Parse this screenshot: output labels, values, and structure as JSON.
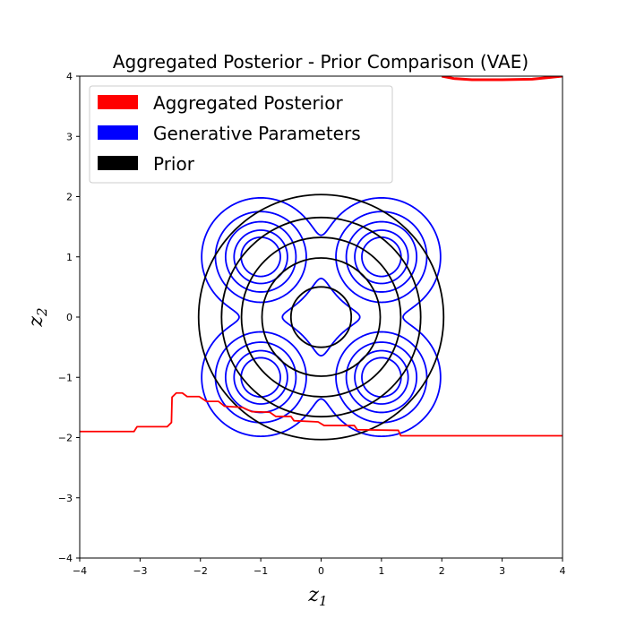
{
  "chart_data": {
    "type": "contour",
    "title": "Aggregated Posterior - Prior Comparison (VAE)",
    "xlabel": {
      "base": "z",
      "sub": "1"
    },
    "ylabel": {
      "base": "z",
      "sub": "2"
    },
    "xlim": [
      -4,
      4
    ],
    "ylim": [
      -4,
      4
    ],
    "xticks": [
      -4,
      -3,
      -2,
      -1,
      0,
      1,
      2,
      3,
      4
    ],
    "yticks": [
      -4,
      -3,
      -2,
      -1,
      0,
      1,
      2,
      3,
      4
    ],
    "xtick_labels": [
      "−4",
      "−3",
      "−2",
      "−1",
      "0",
      "1",
      "2",
      "3",
      "4"
    ],
    "ytick_labels": [
      "−4",
      "−3",
      "−2",
      "−1",
      "0",
      "1",
      "2",
      "3",
      "4"
    ],
    "grid": false,
    "legend_position": "top-left",
    "series": [
      {
        "name": "Aggregated Posterior",
        "color": "#ff0000",
        "paths": [
          [
            [
              -4,
              -1.9
            ],
            [
              -3.1,
              -1.9
            ],
            [
              -3.05,
              -1.82
            ],
            [
              -2.55,
              -1.82
            ],
            [
              -2.48,
              -1.75
            ],
            [
              -2.47,
              -1.33
            ],
            [
              -2.4,
              -1.26
            ],
            [
              -2.3,
              -1.26
            ],
            [
              -2.22,
              -1.32
            ],
            [
              -2.02,
              -1.32
            ],
            [
              -1.9,
              -1.4
            ],
            [
              -1.7,
              -1.4
            ],
            [
              -1.6,
              -1.48
            ],
            [
              -1.3,
              -1.5
            ],
            [
              -1.15,
              -1.57
            ],
            [
              -0.85,
              -1.58
            ],
            [
              -0.75,
              -1.65
            ],
            [
              -0.5,
              -1.65
            ],
            [
              -0.45,
              -1.72
            ],
            [
              -0.05,
              -1.74
            ],
            [
              0.05,
              -1.8
            ],
            [
              0.55,
              -1.8
            ],
            [
              0.6,
              -1.87
            ],
            [
              1.28,
              -1.88
            ],
            [
              1.32,
              -1.97
            ],
            [
              4,
              -1.97
            ]
          ],
          [
            [
              2,
              4
            ],
            [
              2.2,
              3.96
            ],
            [
              2.5,
              3.94
            ],
            [
              3,
              3.94
            ],
            [
              3.5,
              3.95
            ],
            [
              3.8,
              3.98
            ],
            [
              4,
              4
            ]
          ]
        ]
      },
      {
        "name": "Generative Parameters",
        "color": "#0000ff",
        "centers": [
          [
            1,
            1
          ],
          [
            -1,
            1
          ],
          [
            -1,
            -1
          ],
          [
            1,
            -1
          ]
        ],
        "sigma": 0.35,
        "levels": [
          0.02,
          0.1,
          0.25,
          0.45,
          0.65
        ]
      },
      {
        "name": "Prior",
        "color": "#000000",
        "radii": [
          0.5,
          0.98,
          1.32,
          1.65,
          2.03
        ]
      }
    ]
  }
}
